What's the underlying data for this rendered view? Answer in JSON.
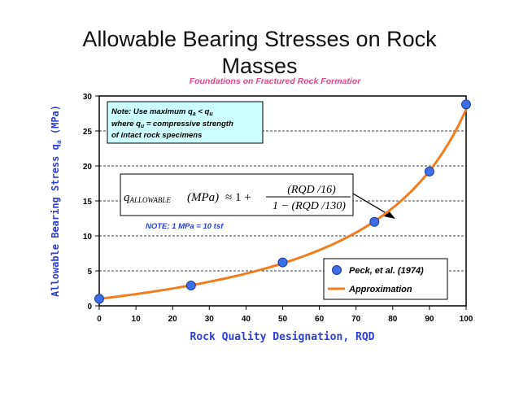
{
  "slide": {
    "title_line1": "Allowable Bearing Stresses on Rock",
    "title_line2": "Masses"
  },
  "chart_data": {
    "type": "scatter",
    "subtitle": "Foundations on Fractured Rock Formatior",
    "xlabel": "Rock Quality Designation, RQD",
    "ylabel_main": "Allowable Bearing Stress q",
    "ylabel_sub": "a",
    "ylabel_tail": " (MPa)",
    "xlim": [
      0,
      100
    ],
    "ylim": [
      0,
      30
    ],
    "xticks": [
      0,
      10,
      20,
      30,
      40,
      50,
      60,
      70,
      80,
      90,
      100
    ],
    "yticks": [
      0,
      5,
      10,
      15,
      20,
      25,
      30
    ],
    "grid": "horizontal-dashed",
    "series": [
      {
        "name": "Peck, et al. (1974)",
        "kind": "points",
        "color": "#3d6ee8",
        "x": [
          0,
          25,
          50,
          75,
          90,
          100
        ],
        "y": [
          1.0,
          2.9,
          6.2,
          12.0,
          19.2,
          28.8
        ]
      },
      {
        "name": "Approximation",
        "kind": "curve",
        "color": "#f07d1e",
        "formula": "1 + (RQD/16)/(1 - RQD/130)"
      }
    ],
    "legend_position": "bottom-right",
    "note_box": {
      "line1": "Note:  Use maximum q",
      "line1_sub": "a",
      "line1_tail": " < q",
      "line1_sub2": "u",
      "line2": "where q",
      "line2_sub": "u",
      "line2_tail": " = compressive strength",
      "line3": "of intact rock specimens"
    },
    "formula": {
      "lhs": "q",
      "lhs_sub": "ALLOWABLE",
      "units": "(MPa)",
      "approx": "≈ 1 +",
      "numerator": "(RQD /16)",
      "denominator": "1 − (RQD /130)"
    },
    "unit_note": "NOTE:  1 MPa = 10 tsf",
    "colors": {
      "note_fill": "#ccffff",
      "subtitle": "#e0478a",
      "axis_label": "#2b3fd6",
      "curve": "#f07d1e",
      "point": "#3d6ee8"
    }
  }
}
